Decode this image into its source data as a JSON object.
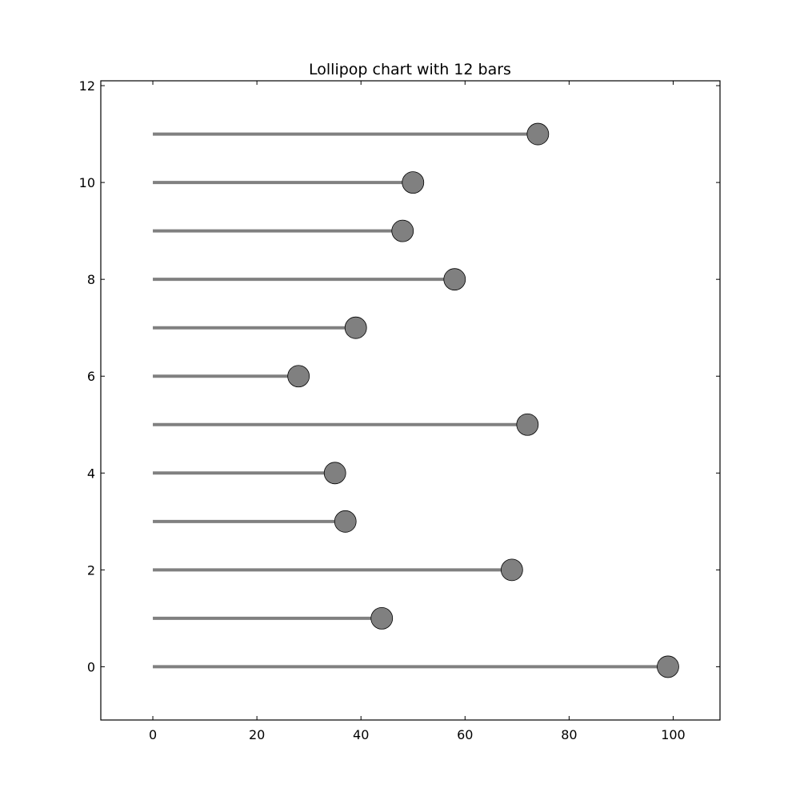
{
  "chart_data": {
    "type": "lollipop",
    "orientation": "horizontal",
    "title": "Lollipop chart with 12 bars",
    "xlabel": "",
    "ylabel": "",
    "xlim": [
      -10,
      109
    ],
    "ylim": [
      -1.1,
      12.1
    ],
    "xticks": [
      0,
      20,
      40,
      60,
      80,
      100
    ],
    "yticks": [
      0,
      2,
      4,
      6,
      8,
      10,
      12
    ],
    "grid": false,
    "legend": "none",
    "colors": {
      "stem": "#808080",
      "marker_fill": "#808080",
      "marker_edge": "#000000",
      "axes": "#000000"
    },
    "series": [
      {
        "y": [
          0,
          1,
          2,
          3,
          4,
          5,
          6,
          7,
          8,
          9,
          10,
          11
        ],
        "values": [
          99,
          44,
          69,
          37,
          35,
          72,
          28,
          39,
          58,
          48,
          50,
          74
        ]
      }
    ]
  }
}
